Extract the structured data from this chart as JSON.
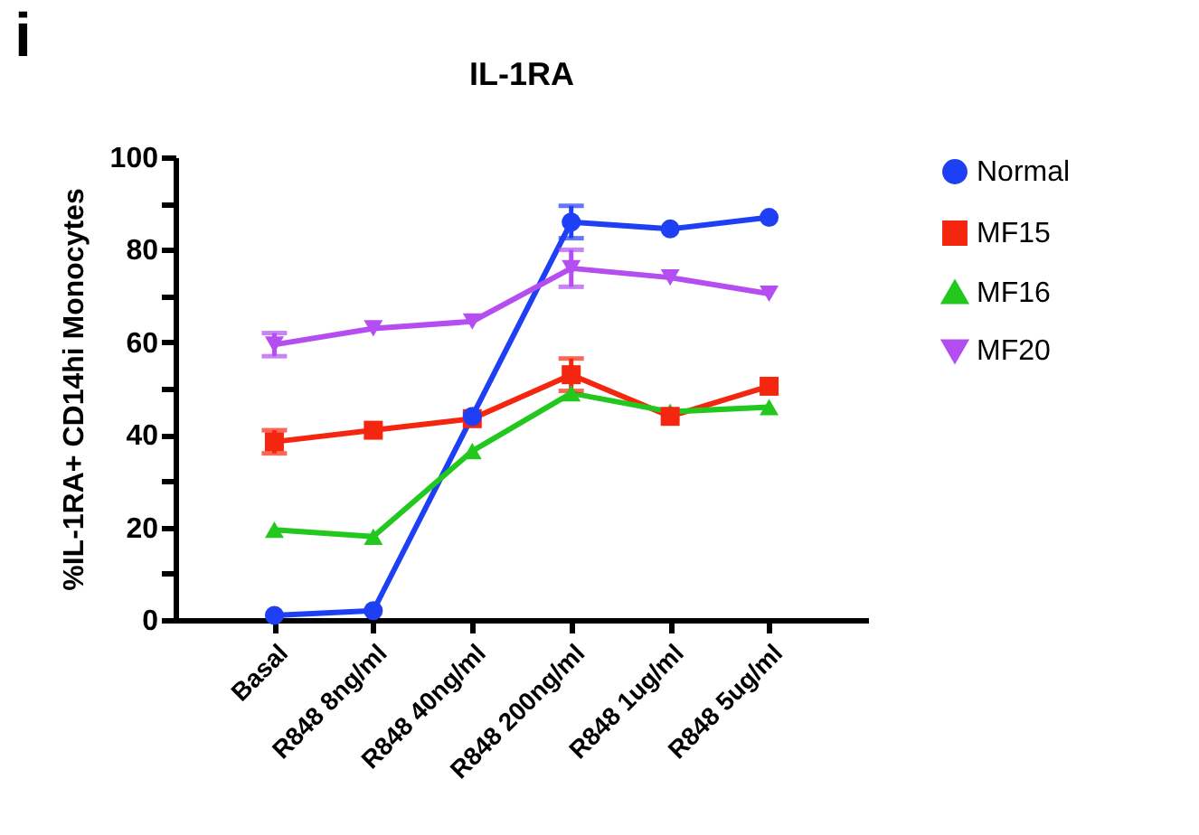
{
  "chart_data": {
    "type": "line",
    "title": "IL-1RA",
    "ylabel": "%IL-1RA+ CD14hi Monocytes",
    "annotations": [
      "i"
    ],
    "categories": [
      "Basal",
      "R848 8ng/ml",
      "R848 40ng/ml",
      "R848 200ng/ml",
      "R848 1ug/ml",
      "R848 5ug/ml"
    ],
    "series": [
      {
        "name": "Normal",
        "color": "#1f3ff5",
        "marker": "circle",
        "values": [
          1,
          2,
          44,
          86,
          84.5,
          87
        ],
        "errors": [
          null,
          null,
          null,
          3.5,
          null,
          null
        ]
      },
      {
        "name": "MF15",
        "color": "#f5260f",
        "marker": "square",
        "values": [
          38.5,
          41,
          43.5,
          53,
          44,
          50.5
        ],
        "errors": [
          2.5,
          null,
          null,
          3.5,
          null,
          null
        ]
      },
      {
        "name": "MF16",
        "color": "#22c81e",
        "marker": "triangle",
        "values": [
          19.5,
          18,
          36.5,
          49,
          45,
          46
        ]
      },
      {
        "name": "MF20",
        "color": "#b44ef0",
        "marker": "triangle-down",
        "values": [
          59.5,
          63,
          64.5,
          76,
          74,
          70.5
        ],
        "errors": [
          2.5,
          null,
          null,
          4,
          null,
          null
        ]
      }
    ],
    "ylim": [
      0,
      100
    ],
    "yticks": [
      0,
      {
        "value": 10,
        "label": null
      },
      20,
      {
        "value": 30,
        "label": null
      },
      40,
      {
        "value": 50,
        "label": null
      },
      60,
      {
        "value": 70,
        "label": null
      },
      80,
      {
        "value": 90,
        "label": null
      },
      100
    ],
    "grid": false,
    "legend": "top right",
    "line_style": "solid"
  }
}
